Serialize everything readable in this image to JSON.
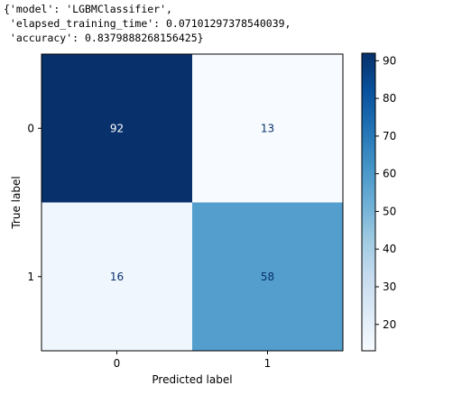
{
  "output": {
    "lines": [
      "{'model': 'LGBMClassifier',",
      " 'elapsed_training_time': 0.07101297378540039,",
      " 'accuracy': 0.8379888268156425}"
    ]
  },
  "chart_data": {
    "type": "heatmap",
    "title": "",
    "xlabel": "Predicted label",
    "ylabel": "True label",
    "x_categories": [
      "0",
      "1"
    ],
    "y_categories": [
      "0",
      "1"
    ],
    "values": [
      [
        92,
        13
      ],
      [
        16,
        58
      ]
    ],
    "colormap": "Blues",
    "color_range": [
      13,
      92
    ],
    "colorbar": {
      "ticks": [
        20,
        30,
        40,
        50,
        60,
        70,
        80,
        90
      ],
      "tick_labels": [
        "20",
        "30",
        "40",
        "50",
        "60",
        "70",
        "80",
        "90"
      ]
    },
    "grid": false
  }
}
